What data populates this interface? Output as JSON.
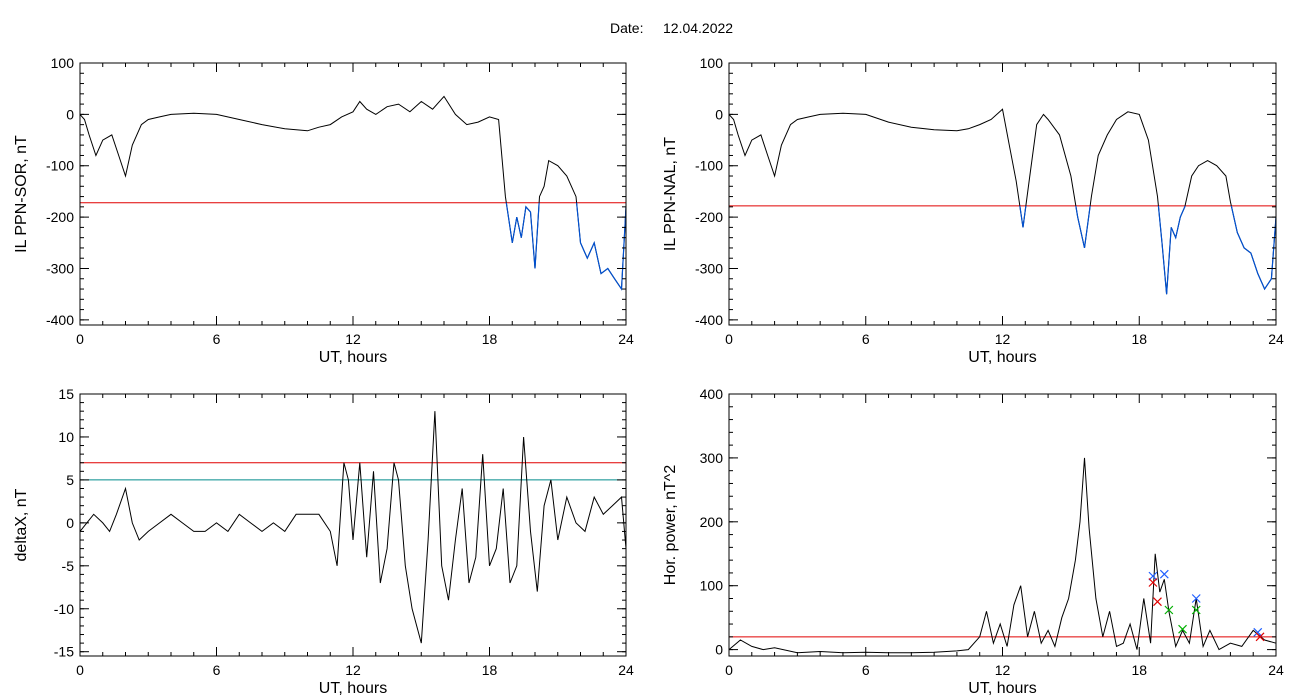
{
  "header": {
    "date_label": "Date:",
    "date_value": "12.04.2022"
  },
  "colors": {
    "trace": "#000000",
    "threshold": "#e00000",
    "threshold2": "#008b8b",
    "highlight": "#0050d0",
    "marker_blue": "#1f5fff",
    "marker_red": "#e00000",
    "marker_green": "#00b000"
  },
  "chart_data": [
    {
      "type": "line",
      "ylabel": "IL PPN-SOR, nT",
      "xlabel": "UT, hours",
      "xlim": [
        0,
        24
      ],
      "ylim": [
        -410,
        100
      ],
      "xticks": [
        0,
        6,
        12,
        18,
        24
      ],
      "yticks": [
        100,
        0,
        -100,
        -200,
        -300,
        -400
      ],
      "thresholds": [
        {
          "value": -172,
          "color": "#e00000"
        }
      ],
      "highlight_below": -172,
      "series": [
        {
          "x": [
            0,
            0.2,
            0.4,
            0.7,
            1.0,
            1.4,
            1.7,
            2.0,
            2.3,
            2.7,
            3.0,
            3.5,
            4.0,
            5.0,
            6.0,
            7.0,
            8.0,
            9.0,
            10.0,
            10.5,
            11.0,
            11.5,
            12.0,
            12.3,
            12.6,
            13.0,
            13.5,
            14.0,
            14.5,
            15.0,
            15.5,
            16.0,
            16.5,
            17.0,
            17.5,
            18.0,
            18.4,
            18.7,
            19.0,
            19.2,
            19.4,
            19.6,
            19.8,
            20.0,
            20.2,
            20.4,
            20.6,
            21.0,
            21.4,
            21.8,
            22.0,
            22.3,
            22.6,
            22.9,
            23.2,
            23.5,
            23.8,
            24.0
          ],
          "y": [
            0,
            -10,
            -40,
            -80,
            -50,
            -40,
            -80,
            -120,
            -60,
            -20,
            -10,
            -5,
            0,
            2,
            0,
            -10,
            -20,
            -28,
            -32,
            -25,
            -20,
            -5,
            5,
            25,
            10,
            0,
            15,
            20,
            5,
            25,
            10,
            35,
            0,
            -20,
            -15,
            -5,
            -10,
            -160,
            -250,
            -200,
            -240,
            -180,
            -190,
            -300,
            -160,
            -140,
            -90,
            -100,
            -120,
            -160,
            -250,
            -280,
            -250,
            -310,
            -300,
            -320,
            -340,
            -180
          ]
        }
      ]
    },
    {
      "type": "line",
      "ylabel": "IL PPN-NAL, nT",
      "xlabel": "UT, hours",
      "xlim": [
        0,
        24
      ],
      "ylim": [
        -410,
        100
      ],
      "xticks": [
        0,
        6,
        12,
        18,
        24
      ],
      "yticks": [
        100,
        0,
        -100,
        -200,
        -300,
        -400
      ],
      "thresholds": [
        {
          "value": -178,
          "color": "#e00000"
        }
      ],
      "highlight_below": -178,
      "series": [
        {
          "x": [
            0,
            0.2,
            0.4,
            0.7,
            1.0,
            1.4,
            1.7,
            2.0,
            2.3,
            2.7,
            3.0,
            3.5,
            4.0,
            5.0,
            6.0,
            7.0,
            8.0,
            9.0,
            10.0,
            10.5,
            11.0,
            11.5,
            12.0,
            12.3,
            12.6,
            12.9,
            13.2,
            13.5,
            13.8,
            14.0,
            14.5,
            15.0,
            15.3,
            15.6,
            15.9,
            16.2,
            16.6,
            17.0,
            17.5,
            18.0,
            18.4,
            18.8,
            19.0,
            19.2,
            19.4,
            19.6,
            19.8,
            20.0,
            20.3,
            20.6,
            21.0,
            21.4,
            21.8,
            22.0,
            22.3,
            22.6,
            22.9,
            23.2,
            23.5,
            23.8,
            24.0
          ],
          "y": [
            0,
            -10,
            -40,
            -80,
            -50,
            -40,
            -80,
            -120,
            -60,
            -20,
            -10,
            -5,
            0,
            2,
            0,
            -15,
            -25,
            -30,
            -32,
            -28,
            -20,
            -10,
            10,
            -60,
            -130,
            -220,
            -120,
            -20,
            0,
            -10,
            -40,
            -120,
            -200,
            -260,
            -160,
            -80,
            -40,
            -10,
            5,
            0,
            -50,
            -160,
            -250,
            -350,
            -220,
            -240,
            -200,
            -180,
            -120,
            -100,
            -90,
            -100,
            -120,
            -170,
            -230,
            -260,
            -270,
            -310,
            -340,
            -320,
            -200
          ]
        }
      ]
    },
    {
      "type": "line",
      "ylabel": "deltaX, nT",
      "xlabel": "UT, hours",
      "xlim": [
        0,
        24
      ],
      "ylim": [
        -15.5,
        15
      ],
      "xticks": [
        0,
        6,
        12,
        18,
        24
      ],
      "yticks": [
        15,
        10,
        5,
        0,
        -5,
        -10,
        -15
      ],
      "thresholds": [
        {
          "value": 7,
          "color": "#e00000"
        },
        {
          "value": 5,
          "color": "#008b8b"
        }
      ],
      "series": [
        {
          "x": [
            0,
            0.3,
            0.6,
            1.0,
            1.3,
            1.6,
            2.0,
            2.3,
            2.6,
            3.0,
            3.5,
            4.0,
            4.5,
            5.0,
            5.5,
            6.0,
            6.5,
            7.0,
            7.5,
            8.0,
            8.5,
            9.0,
            9.5,
            10.0,
            10.5,
            11.0,
            11.3,
            11.6,
            11.8,
            12.0,
            12.3,
            12.6,
            12.9,
            13.2,
            13.5,
            13.8,
            14.0,
            14.3,
            14.6,
            15.0,
            15.3,
            15.6,
            15.9,
            16.2,
            16.5,
            16.8,
            17.1,
            17.4,
            17.7,
            18.0,
            18.3,
            18.6,
            18.9,
            19.2,
            19.5,
            19.8,
            20.1,
            20.4,
            20.7,
            21.0,
            21.4,
            21.8,
            22.2,
            22.6,
            23.0,
            23.4,
            23.8,
            24.0
          ],
          "y": [
            -1,
            0,
            1,
            0,
            -1,
            1,
            4,
            0,
            -2,
            -1,
            0,
            1,
            0,
            -1,
            -1,
            0,
            -1,
            1,
            0,
            -1,
            0,
            -1,
            1,
            1,
            1,
            -1,
            -5,
            7,
            5,
            -2,
            7,
            -4,
            6,
            -7,
            -3,
            7,
            5,
            -5,
            -10,
            -14,
            -2,
            13,
            -5,
            -9,
            -2,
            4,
            -7,
            -4,
            8,
            -5,
            -3,
            4,
            -7,
            -5,
            10,
            -1,
            -8,
            2,
            5,
            -2,
            3,
            0,
            -1,
            3,
            1,
            2,
            3,
            -3
          ]
        }
      ]
    },
    {
      "type": "line",
      "ylabel": "Hor. power, nT^2",
      "xlabel": "UT, hours",
      "xlim": [
        0,
        24
      ],
      "ylim": [
        -10,
        400
      ],
      "xticks": [
        0,
        6,
        12,
        18,
        24
      ],
      "yticks": [
        400,
        300,
        200,
        100,
        0
      ],
      "thresholds": [
        {
          "value": 20,
          "color": "#e00000"
        }
      ],
      "series": [
        {
          "x": [
            0,
            0.5,
            1.0,
            1.5,
            2.0,
            3.0,
            4.0,
            5.0,
            6.0,
            7.0,
            8.0,
            9.0,
            10.0,
            10.5,
            11.0,
            11.3,
            11.6,
            11.9,
            12.2,
            12.5,
            12.8,
            13.1,
            13.4,
            13.7,
            14.0,
            14.3,
            14.6,
            14.9,
            15.2,
            15.4,
            15.6,
            15.8,
            16.1,
            16.4,
            16.7,
            17.0,
            17.3,
            17.6,
            17.9,
            18.2,
            18.5,
            18.7,
            18.9,
            19.1,
            19.3,
            19.6,
            19.9,
            20.2,
            20.5,
            20.8,
            21.1,
            21.5,
            22.0,
            22.5,
            23.0,
            23.5,
            24.0
          ],
          "y": [
            0,
            15,
            5,
            0,
            3,
            -5,
            -3,
            -5,
            -4,
            -5,
            -5,
            -4,
            -2,
            0,
            20,
            60,
            10,
            40,
            5,
            70,
            100,
            20,
            60,
            10,
            30,
            5,
            50,
            80,
            140,
            200,
            300,
            190,
            80,
            20,
            60,
            5,
            10,
            40,
            0,
            80,
            10,
            150,
            90,
            110,
            60,
            5,
            30,
            10,
            80,
            5,
            30,
            0,
            10,
            5,
            30,
            15,
            10
          ]
        }
      ],
      "markers": [
        {
          "x": 18.6,
          "y": 115,
          "color": "#1f5fff",
          "symbol": "x"
        },
        {
          "x": 19.1,
          "y": 118,
          "color": "#1f5fff",
          "symbol": "x"
        },
        {
          "x": 18.6,
          "y": 105,
          "color": "#e00000",
          "symbol": "x"
        },
        {
          "x": 18.8,
          "y": 75,
          "color": "#e00000",
          "symbol": "x"
        },
        {
          "x": 19.3,
          "y": 62,
          "color": "#00b000",
          "symbol": "x"
        },
        {
          "x": 20.5,
          "y": 80,
          "color": "#1f5fff",
          "symbol": "x"
        },
        {
          "x": 20.5,
          "y": 62,
          "color": "#00b000",
          "symbol": "x"
        },
        {
          "x": 19.9,
          "y": 32,
          "color": "#00b000",
          "symbol": "x"
        },
        {
          "x": 23.2,
          "y": 27,
          "color": "#1f5fff",
          "symbol": "x"
        },
        {
          "x": 23.3,
          "y": 20,
          "color": "#e00000",
          "symbol": "x"
        }
      ]
    }
  ]
}
